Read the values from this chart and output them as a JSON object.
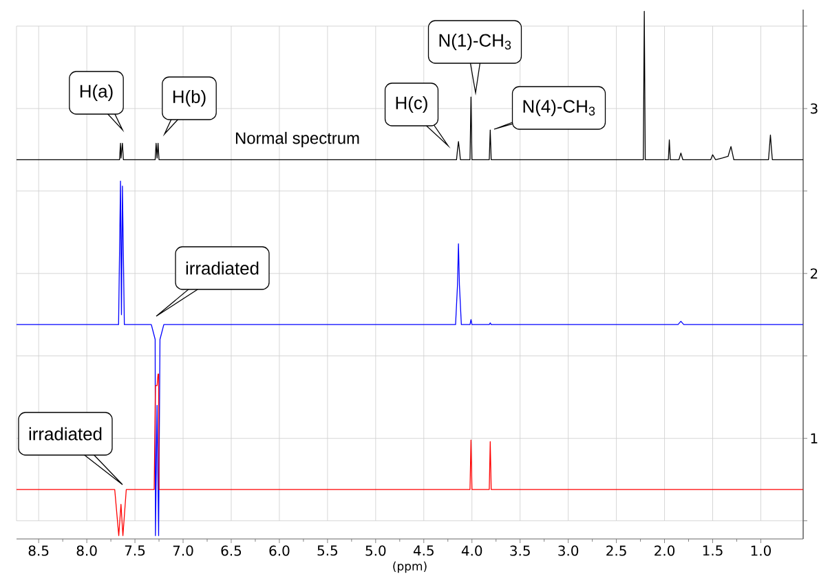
{
  "chart_data": {
    "type": "line",
    "xlabel": "(ppm)",
    "xlim": [
      8.73,
      0.56
    ],
    "ylim": [
      0.39,
      3.6
    ],
    "xticks": [
      8.5,
      {
        "value": 8.0,
        "label": "8.0"
      },
      7.5,
      {
        "value": 7.0,
        "label": "7.0"
      },
      6.5,
      {
        "value": 6.0,
        "label": "6.0"
      },
      5.5,
      {
        "value": 5.0,
        "label": "5.0"
      },
      4.5,
      {
        "value": 4.0,
        "label": "4.0"
      },
      3.5,
      {
        "value": 3.0,
        "label": "3.0"
      },
      2.5,
      {
        "value": 2.0,
        "label": "2.0"
      },
      1.5,
      {
        "value": 1.0,
        "label": "1.0"
      }
    ],
    "yticks": [
      {
        "value": 0.5,
        "label": null
      },
      1,
      {
        "value": 1.5,
        "label": null
      },
      2,
      {
        "value": 2.5,
        "label": null
      },
      3,
      {
        "value": 3.5,
        "label": null
      }
    ],
    "grid": true,
    "series": [
      {
        "color": "#000000",
        "x": [
          8.73,
          7.66,
          7.65,
          7.645,
          7.63,
          7.62,
          7.29,
          7.28,
          7.27,
          7.26,
          7.25,
          4.16,
          4.15,
          4.14,
          4.13,
          4.12,
          4.02,
          4.01,
          4.0,
          3.82,
          3.81,
          3.8,
          2.22,
          2.21,
          2.2,
          1.96,
          1.95,
          1.94,
          1.85,
          1.83,
          1.81,
          1.52,
          1.5,
          1.47,
          1.4,
          1.34,
          1.31,
          1.28,
          0.92,
          0.9,
          0.89,
          0.88,
          0.56
        ],
        "values": [
          2.69,
          2.69,
          2.79,
          2.7,
          2.79,
          2.69,
          2.69,
          2.79,
          2.7,
          2.79,
          2.69,
          2.69,
          2.75,
          2.8,
          2.75,
          2.69,
          2.69,
          3.07,
          2.69,
          2.69,
          2.87,
          2.69,
          2.69,
          3.59,
          2.69,
          2.69,
          2.81,
          2.69,
          2.69,
          2.73,
          2.69,
          2.69,
          2.72,
          2.69,
          2.7,
          2.71,
          2.77,
          2.69,
          2.69,
          2.84,
          2.76,
          2.69,
          2.69
        ]
      },
      {
        "color": "#0000ff",
        "x": [
          8.73,
          7.67,
          7.65,
          7.64,
          7.63,
          7.61,
          7.33,
          7.29,
          7.287,
          7.27,
          7.254,
          7.24,
          7.2,
          4.17,
          4.15,
          4.14,
          4.13,
          4.11,
          4.02,
          4.01,
          4.0,
          3.82,
          3.81,
          3.8,
          1.86,
          1.83,
          1.8,
          0.56
        ],
        "values": [
          1.69,
          1.69,
          2.56,
          1.75,
          2.53,
          1.69,
          1.69,
          1.6,
          0.41,
          1.2,
          0.41,
          1.6,
          1.69,
          1.69,
          1.93,
          2.18,
          1.93,
          1.69,
          1.69,
          1.72,
          1.69,
          1.69,
          1.7,
          1.69,
          1.69,
          1.71,
          1.69,
          1.69
        ]
      },
      {
        "color": "#ff0000",
        "x": [
          8.73,
          7.71,
          7.668,
          7.645,
          7.625,
          7.59,
          7.3,
          7.287,
          7.27,
          7.26,
          7.254,
          7.25,
          4.02,
          4.01,
          4.0,
          3.82,
          3.81,
          3.8,
          0.56
        ],
        "values": [
          0.69,
          0.69,
          0.41,
          0.6,
          0.41,
          0.69,
          0.69,
          1.32,
          1.32,
          1.39,
          1.39,
          0.69,
          0.69,
          0.99,
          0.69,
          0.69,
          0.98,
          0.69,
          0.69
        ]
      }
    ],
    "annotations": [
      "H(a)",
      "H(b)",
      "H(c)",
      "N(1)-CH$_{3}$",
      "N(4)-CH$_{3}$",
      "Normal spectrum",
      "irradiated",
      "irradiated"
    ]
  }
}
